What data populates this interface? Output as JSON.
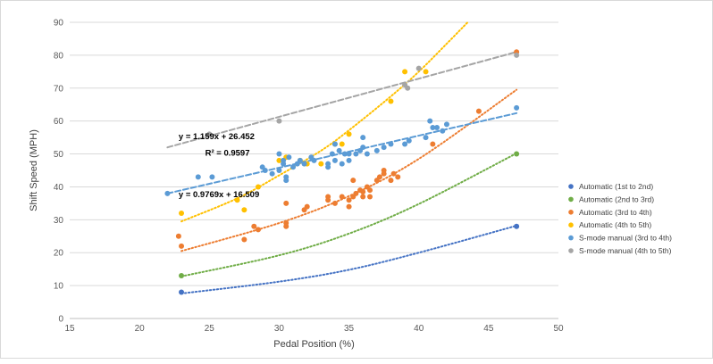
{
  "chart_data": {
    "type": "scatter",
    "xlabel": "Pedal Position (%)",
    "ylabel": "Shift Speed (MPH)",
    "xlim": [
      15,
      50
    ],
    "ylim": [
      0,
      90
    ],
    "x_ticks": [
      "15",
      "20",
      "25",
      "30",
      "35",
      "40",
      "45",
      "50"
    ],
    "y_ticks": [
      "0",
      "10",
      "20",
      "30",
      "40",
      "50",
      "60",
      "70",
      "80",
      "90"
    ],
    "grid": "horizontal",
    "legend_position": "right",
    "annotations": [
      {
        "text": "y = 1.159x + 26.452",
        "at": [
          22.8,
          54.5
        ]
      },
      {
        "text": "R² = 0.9597",
        "at": [
          24.7,
          49.5
        ]
      },
      {
        "text": "y = 0.9769x + 16.509",
        "at": [
          22.8,
          36.8
        ]
      }
    ],
    "series": [
      {
        "name": "Automatic (1st to 2nd)",
        "color": "#4472C4",
        "trendline": {
          "kind": "exponential",
          "points": [
            [
              23,
              7.6
            ],
            [
              30,
              11.2
            ],
            [
              35,
              14.8
            ],
            [
              40,
              20.0
            ],
            [
              47,
              28.2
            ]
          ]
        },
        "points": [
          [
            23,
            8
          ],
          [
            47,
            28
          ]
        ]
      },
      {
        "name": "Automatic (2nd to 3rd)",
        "color": "#70AD47",
        "trendline": {
          "kind": "exponential",
          "points": [
            [
              23,
              12.8
            ],
            [
              30,
              19.2
            ],
            [
              35,
              25.8
            ],
            [
              40,
              34.8
            ],
            [
              47,
              50.2
            ]
          ]
        },
        "points": [
          [
            23,
            13
          ],
          [
            47,
            50
          ]
        ]
      },
      {
        "name": "Automatic (3rd to 4th)",
        "color": "#ED7D31",
        "trendline": {
          "kind": "exponential",
          "points": [
            [
              23,
              20.5
            ],
            [
              30,
              29.0
            ],
            [
              35,
              37.2
            ],
            [
              40,
              48.5
            ],
            [
              47,
              69.5
            ]
          ]
        },
        "points": [
          [
            22.8,
            25
          ],
          [
            23,
            22
          ],
          [
            27.5,
            24
          ],
          [
            28.2,
            28
          ],
          [
            28.5,
            27
          ],
          [
            30.5,
            35
          ],
          [
            30.5,
            29
          ],
          [
            30.5,
            28
          ],
          [
            31.8,
            33
          ],
          [
            32,
            34
          ],
          [
            33.5,
            37
          ],
          [
            33.5,
            36
          ],
          [
            34,
            35
          ],
          [
            34.5,
            37
          ],
          [
            35,
            36
          ],
          [
            35,
            34
          ],
          [
            35.3,
            42
          ],
          [
            35.3,
            37
          ],
          [
            35.5,
            38
          ],
          [
            35.8,
            39
          ],
          [
            36,
            37
          ],
          [
            36,
            38.5
          ],
          [
            36.3,
            40
          ],
          [
            36.5,
            37
          ],
          [
            36.5,
            39
          ],
          [
            37,
            42
          ],
          [
            37.2,
            43
          ],
          [
            37.5,
            44
          ],
          [
            37.5,
            45
          ],
          [
            38,
            42
          ],
          [
            38.2,
            44
          ],
          [
            38.5,
            43
          ],
          [
            41,
            53
          ],
          [
            44.3,
            63
          ],
          [
            47,
            81
          ]
        ]
      },
      {
        "name": "Automatic (4th to 5th)",
        "color": "#FFC000",
        "trendline": {
          "kind": "exponential",
          "points": [
            [
              23,
              29.5
            ],
            [
              27,
              36.5
            ],
            [
              30,
              43.5
            ],
            [
              33,
              51.0
            ],
            [
              35,
              57.2
            ],
            [
              38,
              67.5
            ],
            [
              40,
              75.0
            ],
            [
              42,
              83.5
            ],
            [
              43.5,
              90.0
            ]
          ]
        },
        "points": [
          [
            23,
            32
          ],
          [
            27,
            36
          ],
          [
            27.5,
            33
          ],
          [
            28.5,
            40
          ],
          [
            30,
            48
          ],
          [
            30.5,
            49
          ],
          [
            31.5,
            48
          ],
          [
            32,
            47
          ],
          [
            33,
            47
          ],
          [
            34,
            53
          ],
          [
            34.5,
            53
          ],
          [
            35,
            56
          ],
          [
            38,
            66
          ],
          [
            39,
            75
          ],
          [
            40.5,
            75
          ]
        ]
      },
      {
        "name": "S-mode manual (3rd to 4th)",
        "color": "#5B9BD5",
        "trendline": {
          "kind": "linear",
          "points": [
            [
              22,
              38.0
            ],
            [
              47,
              62.4
            ]
          ]
        },
        "points": [
          [
            22,
            38
          ],
          [
            24.2,
            43
          ],
          [
            25.2,
            43
          ],
          [
            28.8,
            46
          ],
          [
            29,
            45
          ],
          [
            29.5,
            44
          ],
          [
            30,
            50
          ],
          [
            30,
            45
          ],
          [
            30.3,
            47
          ],
          [
            30.3,
            48
          ],
          [
            30.5,
            43
          ],
          [
            30.5,
            42
          ],
          [
            30.7,
            49
          ],
          [
            31,
            46
          ],
          [
            31.3,
            47
          ],
          [
            31.5,
            48
          ],
          [
            31.8,
            47
          ],
          [
            32.3,
            49
          ],
          [
            32.5,
            48
          ],
          [
            33.5,
            46
          ],
          [
            33.5,
            47
          ],
          [
            33.8,
            50
          ],
          [
            34,
            53
          ],
          [
            34,
            48
          ],
          [
            34.3,
            51
          ],
          [
            34.5,
            47
          ],
          [
            34.7,
            50
          ],
          [
            35,
            48
          ],
          [
            35,
            50
          ],
          [
            35.5,
            50
          ],
          [
            35.8,
            51
          ],
          [
            36,
            52
          ],
          [
            36,
            55
          ],
          [
            36.3,
            50
          ],
          [
            37,
            51
          ],
          [
            37.5,
            52
          ],
          [
            38,
            53
          ],
          [
            39,
            53
          ],
          [
            39.3,
            54
          ],
          [
            40.5,
            55
          ],
          [
            40.8,
            60
          ],
          [
            41,
            58
          ],
          [
            41.3,
            58
          ],
          [
            41.7,
            57
          ],
          [
            42,
            59
          ],
          [
            47,
            64
          ]
        ]
      },
      {
        "name": "S-mode manual (4th to 5th)",
        "color": "#A5A5A5",
        "trendline": {
          "kind": "linear",
          "points": [
            [
              22,
              52.0
            ],
            [
              47,
              81.0
            ]
          ]
        },
        "points": [
          [
            25,
            56
          ],
          [
            30,
            60
          ],
          [
            39,
            71
          ],
          [
            39.2,
            70
          ],
          [
            40,
            76
          ],
          [
            47,
            80
          ]
        ]
      }
    ]
  }
}
